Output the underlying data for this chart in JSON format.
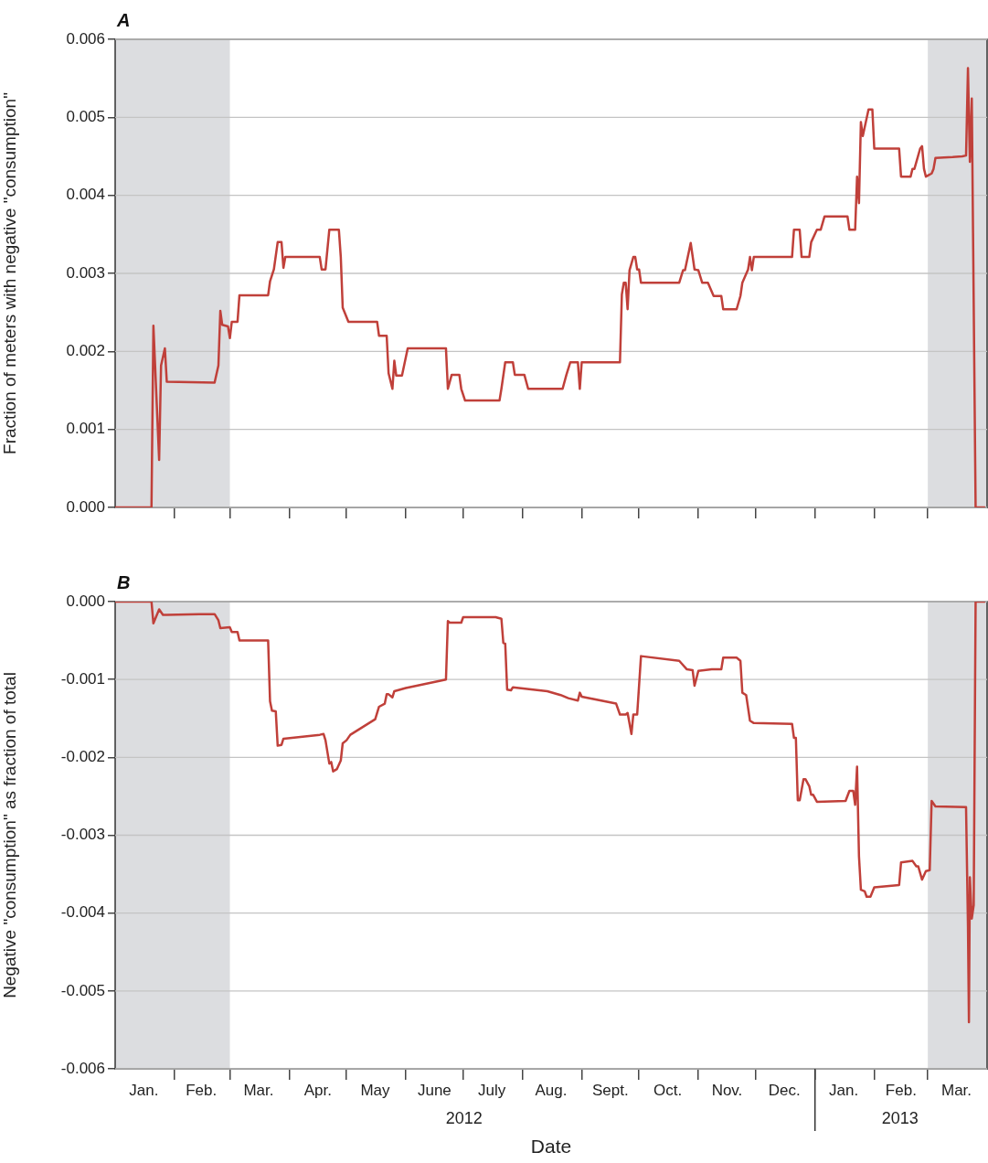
{
  "chart_data": [
    {
      "type": "line",
      "title": "A",
      "ylabel": "Fraction of meters with negative \"consumption\"",
      "color": "#c0403a",
      "marker": "none",
      "line_style": "solid",
      "grid": "y",
      "legend": false,
      "tick_labels": "y",
      "xlim": [
        "2012-01-01",
        "2013-04-01"
      ],
      "ylim": [
        0,
        0.006
      ],
      "xticks": [
        {
          "value": "2012-02-01",
          "label": null
        },
        {
          "value": "2012-03-01",
          "label": null
        },
        {
          "value": "2012-04-01",
          "label": null
        },
        {
          "value": "2012-05-01",
          "label": null
        },
        {
          "value": "2012-06-01",
          "label": null
        },
        {
          "value": "2012-07-01",
          "label": null
        },
        {
          "value": "2012-08-01",
          "label": null
        },
        {
          "value": "2012-09-01",
          "label": null
        },
        {
          "value": "2012-10-01",
          "label": null
        },
        {
          "value": "2012-11-01",
          "label": null
        },
        {
          "value": "2012-12-01",
          "label": null
        },
        {
          "value": "2013-01-01",
          "label": null
        },
        {
          "value": "2013-02-01",
          "label": null
        },
        {
          "value": "2013-03-01",
          "label": null
        }
      ],
      "yticks": [
        {
          "value": 0,
          "label": "0.000"
        },
        {
          "value": 0.001,
          "label": "0.001"
        },
        {
          "value": 0.002,
          "label": "0.002"
        },
        {
          "value": 0.003,
          "label": "0.003"
        },
        {
          "value": 0.004,
          "label": "0.004"
        },
        {
          "value": 0.005,
          "label": "0.005"
        },
        {
          "value": 0.006,
          "label": "0.006"
        }
      ],
      "bands": [
        {
          "axis": "x",
          "from": "2012-01-01",
          "to": "2012-03-01",
          "color": "#dcdde0"
        },
        {
          "axis": "x",
          "from": "2013-03-01",
          "to": "2013-04-01",
          "color": "#dcdde0"
        }
      ],
      "x": [
        "2012-01-01",
        "2012-01-20",
        "2012-01-21",
        "2012-01-24",
        "2012-01-25",
        "2012-01-27",
        "2012-01-28",
        "2012-02-22",
        "2012-02-24",
        "2012-02-25",
        "2012-02-26",
        "2012-02-29",
        "2012-03-01",
        "2012-03-02",
        "2012-03-05",
        "2012-03-06",
        "2012-03-21",
        "2012-03-22",
        "2012-03-24",
        "2012-03-26",
        "2012-03-28",
        "2012-03-29",
        "2012-03-30",
        "2012-04-17",
        "2012-04-18",
        "2012-04-20",
        "2012-04-22",
        "2012-04-27",
        "2012-04-28",
        "2012-04-29",
        "2012-05-02",
        "2012-05-17",
        "2012-05-18",
        "2012-05-22",
        "2012-05-23",
        "2012-05-25",
        "2012-05-26",
        "2012-05-27",
        "2012-05-30",
        "2012-06-02",
        "2012-06-22",
        "2012-06-23",
        "2012-06-25",
        "2012-06-29",
        "2012-06-30",
        "2012-07-02",
        "2012-07-20",
        "2012-07-21",
        "2012-07-23",
        "2012-07-27",
        "2012-07-28",
        "2012-08-02",
        "2012-08-04",
        "2012-08-22",
        "2012-08-24",
        "2012-08-26",
        "2012-08-30",
        "2012-08-31",
        "2012-09-01",
        "2012-09-21",
        "2012-09-22",
        "2012-09-23",
        "2012-09-24",
        "2012-09-25",
        "2012-09-26",
        "2012-09-28",
        "2012-09-29",
        "2012-09-30",
        "2012-10-01",
        "2012-10-02",
        "2012-10-22",
        "2012-10-24",
        "2012-10-25",
        "2012-10-28",
        "2012-10-30",
        "2012-11-01",
        "2012-11-03",
        "2012-11-06",
        "2012-11-09",
        "2012-11-13",
        "2012-11-14",
        "2012-11-21",
        "2012-11-23",
        "2012-11-24",
        "2012-11-27",
        "2012-11-28",
        "2012-11-29",
        "2012-11-30",
        "2012-12-20",
        "2012-12-21",
        "2012-12-24",
        "2012-12-25",
        "2012-12-29",
        "2012-12-30",
        "2013-01-02",
        "2013-01-04",
        "2013-01-06",
        "2013-01-18",
        "2013-01-19",
        "2013-01-22",
        "2013-01-23",
        "2013-01-24",
        "2013-01-25",
        "2013-01-26",
        "2013-01-29",
        "2013-01-31",
        "2013-02-01",
        "2013-02-14",
        "2013-02-15",
        "2013-02-20",
        "2013-02-21",
        "2013-02-22",
        "2013-02-25",
        "2013-02-26",
        "2013-02-27",
        "2013-02-28",
        "2013-03-03",
        "2013-03-04",
        "2013-03-05",
        "2013-03-14",
        "2013-03-19",
        "2013-03-21",
        "2013-03-22",
        "2013-03-23",
        "2013-03-24",
        "2013-03-26",
        "2013-03-31"
      ],
      "values": [
        0,
        0,
        0.00233,
        0.00061,
        0.00182,
        0.00204,
        0.00161,
        0.0016,
        0.00182,
        0.00252,
        0.00234,
        0.00232,
        0.00217,
        0.00238,
        0.00238,
        0.00272,
        0.00272,
        0.0029,
        0.00305,
        0.0034,
        0.0034,
        0.00307,
        0.00321,
        0.00321,
        0.00305,
        0.00305,
        0.00356,
        0.00356,
        0.00321,
        0.00256,
        0.00238,
        0.00238,
        0.0022,
        0.0022,
        0.00172,
        0.00152,
        0.00188,
        0.00169,
        0.00169,
        0.00204,
        0.00204,
        0.00152,
        0.0017,
        0.0017,
        0.00152,
        0.00137,
        0.00137,
        0.00152,
        0.00186,
        0.00186,
        0.0017,
        0.0017,
        0.00152,
        0.00152,
        0.0017,
        0.00186,
        0.00186,
        0.00152,
        0.00186,
        0.00186,
        0.00273,
        0.00288,
        0.00288,
        0.00254,
        0.00304,
        0.00321,
        0.00321,
        0.00305,
        0.00305,
        0.00288,
        0.00288,
        0.00304,
        0.00304,
        0.00339,
        0.00305,
        0.00304,
        0.00288,
        0.00288,
        0.00271,
        0.00271,
        0.00254,
        0.00254,
        0.00271,
        0.00288,
        0.00305,
        0.00321,
        0.00304,
        0.00321,
        0.00321,
        0.00356,
        0.00356,
        0.00321,
        0.00321,
        0.0034,
        0.00356,
        0.00356,
        0.00373,
        0.00373,
        0.00356,
        0.00356,
        0.00424,
        0.0039,
        0.00494,
        0.00476,
        0.0051,
        0.0051,
        0.0046,
        0.0046,
        0.00424,
        0.00424,
        0.00434,
        0.00434,
        0.0046,
        0.00463,
        0.00434,
        0.00424,
        0.00428,
        0.00434,
        0.00448,
        0.00449,
        0.0045,
        0.00451,
        0.00563,
        0.00443,
        0.00524,
        0,
        0
      ]
    },
    {
      "type": "line",
      "title": "B",
      "ylabel": "Negative \"consumption\" as fraction of total",
      "xlabel": "Date",
      "color": "#c0403a",
      "marker": "none",
      "line_style": "solid",
      "grid": "y",
      "legend": false,
      "annotations": [
        "2012",
        "2013"
      ],
      "xlim": [
        "2012-01-01",
        "2013-04-01"
      ],
      "ylim": [
        -0.006,
        0
      ],
      "yticks": [
        {
          "value": -0.006,
          "label": "-0.006"
        },
        {
          "value": -0.005,
          "label": "-0.005"
        },
        {
          "value": -0.004,
          "label": "-0.004"
        },
        {
          "value": -0.003,
          "label": "-0.003"
        },
        {
          "value": -0.002,
          "label": "-0.002"
        },
        {
          "value": -0.001,
          "label": "-0.001"
        },
        {
          "value": 0,
          "label": "0.000"
        }
      ],
      "xticks": [
        {
          "value": "2012-01-16",
          "label": "Jan."
        },
        {
          "value": "2012-02-01",
          "label": null
        },
        {
          "value": "2012-02-15",
          "label": "Feb."
        },
        {
          "value": "2012-03-01",
          "label": null
        },
        {
          "value": "2012-03-16",
          "label": "Mar."
        },
        {
          "value": "2012-04-01",
          "label": null
        },
        {
          "value": "2012-04-16",
          "label": "Apr."
        },
        {
          "value": "2012-05-01",
          "label": null
        },
        {
          "value": "2012-05-16",
          "label": "May"
        },
        {
          "value": "2012-06-01",
          "label": null
        },
        {
          "value": "2012-06-16",
          "label": "June"
        },
        {
          "value": "2012-07-01",
          "label": null
        },
        {
          "value": "2012-07-16",
          "label": "July"
        },
        {
          "value": "2012-08-01",
          "label": null
        },
        {
          "value": "2012-08-16",
          "label": "Aug."
        },
        {
          "value": "2012-09-01",
          "label": null
        },
        {
          "value": "2012-09-16",
          "label": "Sept."
        },
        {
          "value": "2012-10-01",
          "label": null
        },
        {
          "value": "2012-10-16",
          "label": "Oct."
        },
        {
          "value": "2012-11-01",
          "label": null
        },
        {
          "value": "2012-11-16",
          "label": "Nov."
        },
        {
          "value": "2012-12-01",
          "label": null
        },
        {
          "value": "2012-12-16",
          "label": "Dec."
        },
        {
          "value": "2013-01-01",
          "label": null
        },
        {
          "value": "2013-01-16",
          "label": "Jan."
        },
        {
          "value": "2013-02-01",
          "label": null
        },
        {
          "value": "2013-02-15",
          "label": "Feb."
        },
        {
          "value": "2013-03-01",
          "label": null
        },
        {
          "value": "2013-03-16",
          "label": "Mar."
        }
      ],
      "bands": [
        {
          "axis": "x",
          "from": "2012-01-01",
          "to": "2012-03-01",
          "color": "#dcdde0"
        },
        {
          "axis": "x",
          "from": "2013-03-01",
          "to": "2013-04-01",
          "color": "#dcdde0"
        }
      ],
      "x": [
        "2012-01-01",
        "2012-01-20",
        "2012-01-21",
        "2012-01-24",
        "2012-01-26",
        "2012-01-28",
        "2012-02-14",
        "2012-02-22",
        "2012-02-24",
        "2012-02-25",
        "2012-03-01",
        "2012-03-02",
        "2012-03-05",
        "2012-03-06",
        "2012-03-21",
        "2012-03-22",
        "2012-03-23",
        "2012-03-25",
        "2012-03-26",
        "2012-03-28",
        "2012-03-29",
        "2012-04-17",
        "2012-04-19",
        "2012-04-20",
        "2012-04-22",
        "2012-04-23",
        "2012-04-24",
        "2012-04-26",
        "2012-04-28",
        "2012-04-29",
        "2012-05-01",
        "2012-05-03",
        "2012-05-16",
        "2012-05-18",
        "2012-05-21",
        "2012-05-22",
        "2012-05-23",
        "2012-05-25",
        "2012-05-26",
        "2012-06-01",
        "2012-06-22",
        "2012-06-23",
        "2012-06-24",
        "2012-06-30",
        "2012-07-01",
        "2012-07-18",
        "2012-07-21",
        "2012-07-22",
        "2012-07-23",
        "2012-07-24",
        "2012-07-26",
        "2012-07-27",
        "2012-08-14",
        "2012-08-21",
        "2012-08-25",
        "2012-08-30",
        "2012-08-31",
        "2012-09-01",
        "2012-09-19",
        "2012-09-21",
        "2012-09-24",
        "2012-09-25",
        "2012-09-27",
        "2012-09-28",
        "2012-09-30",
        "2012-10-02",
        "2012-10-22",
        "2012-10-26",
        "2012-10-29",
        "2012-10-30",
        "2012-11-01",
        "2012-11-08",
        "2012-11-13",
        "2012-11-14",
        "2012-11-21",
        "2012-11-23",
        "2012-11-24",
        "2012-11-26",
        "2012-11-28",
        "2012-11-30",
        "2012-12-20",
        "2012-12-21",
        "2012-12-22",
        "2012-12-23",
        "2012-12-24",
        "2012-12-26",
        "2012-12-27",
        "2012-12-29",
        "2012-12-30",
        "2012-12-31",
        "2013-01-02",
        "2013-01-17",
        "2013-01-19",
        "2013-01-21",
        "2013-01-22",
        "2013-01-23",
        "2013-01-24",
        "2013-01-25",
        "2013-01-27",
        "2013-01-28",
        "2013-01-30",
        "2013-02-01",
        "2013-02-14",
        "2013-02-15",
        "2013-02-21",
        "2013-02-23",
        "2013-02-24",
        "2013-02-26",
        "2013-02-28",
        "2013-03-02",
        "2013-03-03",
        "2013-03-05",
        "2013-03-21",
        "2013-03-22",
        "2013-03-22T12:00",
        "2013-03-23",
        "2013-03-24",
        "2013-03-25",
        "2013-03-26",
        "2013-03-31"
      ],
      "values": [
        0,
        0,
        -0.00028,
        -0.0001,
        -0.00017,
        -0.00017,
        -0.00016,
        -0.00016,
        -0.00024,
        -0.00034,
        -0.00033,
        -0.00039,
        -0.00039,
        -0.0005,
        -0.0005,
        -0.00128,
        -0.0014,
        -0.00141,
        -0.00185,
        -0.00184,
        -0.00176,
        -0.00171,
        -0.0017,
        -0.00178,
        -0.00208,
        -0.00206,
        -0.00218,
        -0.00215,
        -0.00204,
        -0.00182,
        -0.00178,
        -0.00171,
        -0.00151,
        -0.00135,
        -0.00131,
        -0.00119,
        -0.00119,
        -0.00123,
        -0.00115,
        -0.00111,
        -0.001,
        -0.00025,
        -0.00027,
        -0.00027,
        -0.0002,
        -0.0002,
        -0.00022,
        -0.00053,
        -0.00054,
        -0.00113,
        -0.00114,
        -0.0011,
        -0.00115,
        -0.0012,
        -0.00124,
        -0.00127,
        -0.00117,
        -0.00122,
        -0.00131,
        -0.00145,
        -0.00145,
        -0.00143,
        -0.0017,
        -0.00145,
        -0.00145,
        -0.0007,
        -0.00076,
        -0.00087,
        -0.00088,
        -0.00108,
        -0.00089,
        -0.00087,
        -0.00087,
        -0.00072,
        -0.00072,
        -0.00076,
        -0.00117,
        -0.0012,
        -0.00153,
        -0.00156,
        -0.00157,
        -0.00175,
        -0.00175,
        -0.00255,
        -0.00255,
        -0.00228,
        -0.00228,
        -0.00237,
        -0.00248,
        -0.00248,
        -0.00257,
        -0.00256,
        -0.00243,
        -0.00243,
        -0.00261,
        -0.00212,
        -0.00327,
        -0.0037,
        -0.00372,
        -0.00379,
        -0.00379,
        -0.00367,
        -0.00364,
        -0.00335,
        -0.00333,
        -0.0034,
        -0.0034,
        -0.00357,
        -0.00346,
        -0.00345,
        -0.00256,
        -0.00263,
        -0.00264,
        -0.00417,
        -0.0054,
        -0.00354,
        -0.00407,
        -0.0039,
        0,
        0
      ]
    }
  ]
}
